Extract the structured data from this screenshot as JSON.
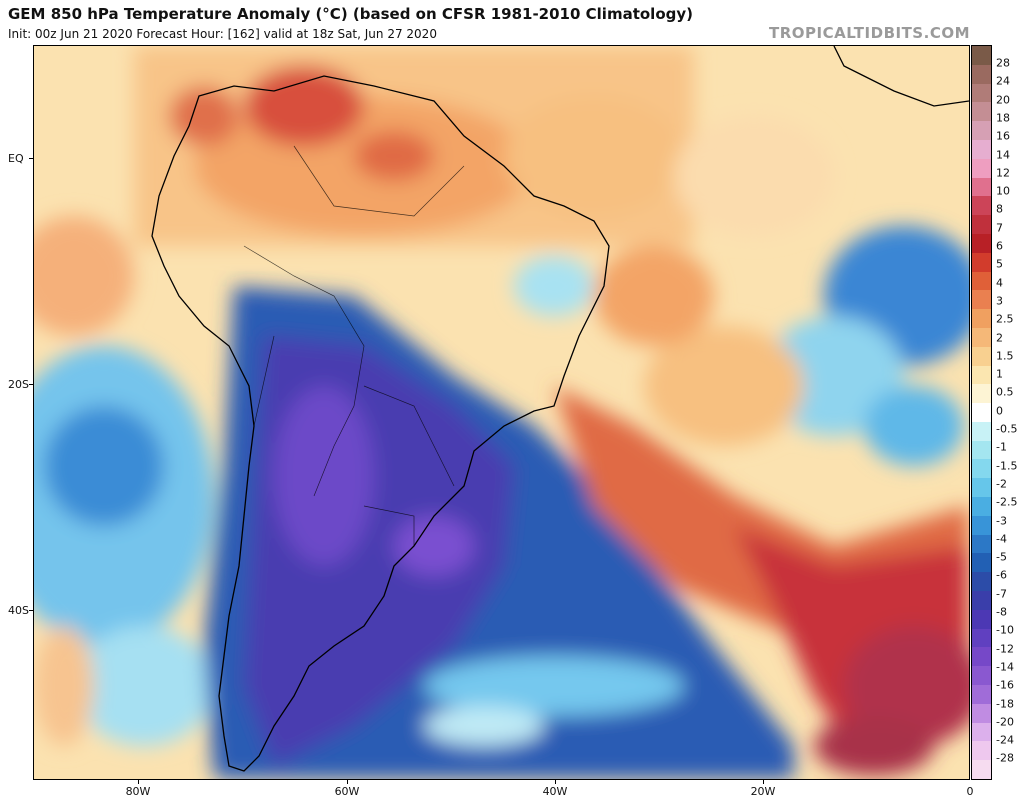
{
  "header": {
    "title": "GEM 850 hPa Temperature Anomaly (°C) (based on CFSR 1981-2010 Climatology)",
    "subtitle": "Init: 00z Jun 21 2020   Forecast Hour: [162]   valid at 18z Sat, Jun 27 2020",
    "brand": "TROPICALTIDBITS.COM"
  },
  "axes": {
    "lat_labels": [
      "EQ",
      "20S",
      "40S"
    ],
    "lon_labels": [
      "80W",
      "60W",
      "40W",
      "20W",
      "0"
    ]
  },
  "colorbar": {
    "levels": [
      "28",
      "24",
      "20",
      "18",
      "16",
      "14",
      "12",
      "10",
      "8",
      "7",
      "6",
      "5",
      "4",
      "3",
      "2.5",
      "2",
      "1.5",
      "1",
      "0.5",
      "0",
      "-0.5",
      "-1",
      "-1.5",
      "-2",
      "-2.5",
      "-3",
      "-4",
      "-5",
      "-6",
      "-7",
      "-8",
      "-10",
      "-12",
      "-14",
      "-16",
      "-18",
      "-20",
      "-24",
      "-28"
    ],
    "colors": [
      "#7a5a48",
      "#9a6a60",
      "#b07c78",
      "#c48e94",
      "#d6a0b4",
      "#e6aed0",
      "#ee9ec0",
      "#e0708e",
      "#cc4458",
      "#c0303c",
      "#b82026",
      "#d23c2c",
      "#e06038",
      "#ea8050",
      "#f0a060",
      "#f5b878",
      "#f8d090",
      "#fbe6b0",
      "#fdf4d4",
      "#ffffff",
      "#c8f2f6",
      "#a4e6f0",
      "#84d8ee",
      "#66c6ea",
      "#4aaee2",
      "#3894d8",
      "#2c78c6",
      "#2260b4",
      "#2c4ca8",
      "#3a3eaa",
      "#4c38b4",
      "#6040c0",
      "#7648c8",
      "#8a58d0",
      "#a06cd8",
      "#c08ce2",
      "#dcb0ec",
      "#eec8ee",
      "#f6dcf0"
    ]
  }
}
